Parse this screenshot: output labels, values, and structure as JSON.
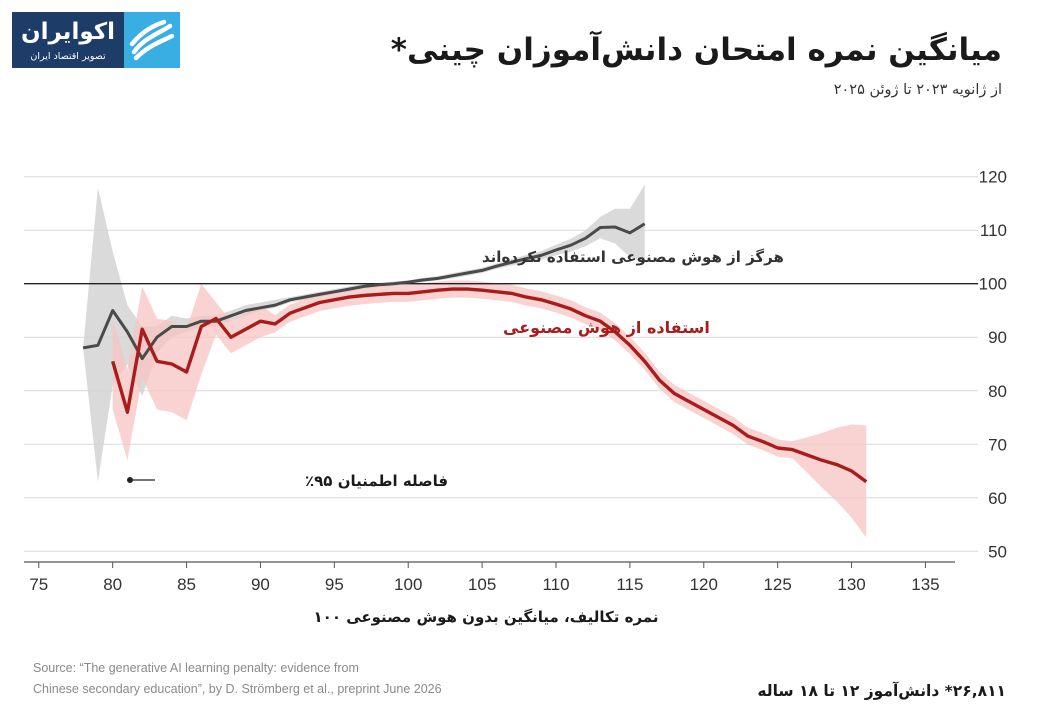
{
  "logo": {
    "name": "اکوایران",
    "tagline": "تصویر اقتصاد ایران"
  },
  "header": {
    "title": "میانگین نمره امتحان دانش‌آموزان چینی*",
    "subtitle": "از ژانویه ۲۰۲۳ تا ژوئن ۲۰۲۵"
  },
  "footer": {
    "source_line1": "Source: “The generative AI learning penalty: evidence from",
    "source_line2": "Chinese secondary education”, by D. Strömberg et al., preprint June 2026",
    "footnote": "۲۶,۸۱۱* دانش‌آموز ۱۲ تا ۱۸ ساله"
  },
  "colors": {
    "never_line": "#4a4a4a",
    "never_band": "#d4d4d4",
    "ai_line": "#a81c1c",
    "ai_band": "#f6c4c2",
    "brand_dark": "#1d3c67",
    "brand_light": "#38aee3"
  },
  "chart_data": {
    "type": "line",
    "xlabel": "نمره تکالیف، میانگین بدون هوش مصنوعی ۱۰۰",
    "xlim": [
      74,
      137
    ],
    "ylim": [
      48,
      122
    ],
    "x_ticks": [
      75,
      80,
      85,
      90,
      95,
      100,
      105,
      110,
      115,
      120,
      125,
      130,
      135
    ],
    "y_ticks": [
      50,
      60,
      70,
      80,
      90,
      100,
      110,
      120
    ],
    "reference_line": 100,
    "grid": "horizontal",
    "series": [
      {
        "name": "هرگز از هوش مصنوعی استفاده نکرده‌اند",
        "x": [
          78,
          79,
          80,
          81,
          82,
          83,
          84,
          85,
          86,
          87,
          88,
          89,
          90,
          91,
          92,
          93,
          94,
          95,
          96,
          97,
          98,
          99,
          100,
          101,
          102,
          103,
          104,
          105,
          106,
          107,
          108,
          109,
          110,
          111,
          112,
          113,
          114,
          115,
          116
        ],
        "y": [
          88,
          88.5,
          95,
          91,
          86,
          90,
          92,
          92,
          93,
          93,
          94,
          95,
          95.5,
          96,
          97,
          97.5,
          98,
          98.5,
          99,
          99.5,
          99.8,
          100,
          100.3,
          100.7,
          101,
          101.5,
          102,
          102.5,
          103.3,
          104,
          104.7,
          105.3,
          106.3,
          107.2,
          108.5,
          110.5,
          110.6,
          109.5,
          111.2
        ],
        "ci_lower": [
          88,
          63,
          81,
          85,
          79,
          87,
          90,
          91,
          92,
          92,
          93,
          94,
          95,
          95.5,
          96.5,
          97,
          97.5,
          98,
          98.5,
          99,
          99.4,
          99.6,
          100,
          100.3,
          100.6,
          101,
          101.5,
          102,
          102.8,
          103.4,
          104,
          104.5,
          105.3,
          106,
          107,
          108.5,
          107.5,
          105,
          104
        ],
        "ci_upper": [
          88,
          118,
          106,
          96,
          92,
          92,
          94,
          93.5,
          94,
          94,
          95,
          96,
          96.5,
          97,
          97.5,
          98,
          98.5,
          99,
          99.5,
          100,
          100.2,
          100.4,
          100.6,
          101.1,
          101.4,
          102,
          102.5,
          103,
          103.8,
          104.6,
          105.4,
          106.1,
          107.3,
          108.4,
          110,
          112.5,
          114,
          114,
          118.5
        ]
      },
      {
        "name": "استفاده از هوش مصنوعی",
        "x": [
          80,
          81,
          82,
          83,
          84,
          85,
          86,
          87,
          88,
          89,
          90,
          91,
          92,
          93,
          94,
          95,
          96,
          97,
          98,
          99,
          100,
          101,
          102,
          103,
          104,
          105,
          106,
          107,
          108,
          109,
          110,
          111,
          112,
          113,
          114,
          115,
          116,
          117,
          118,
          119,
          120,
          121,
          122,
          123,
          124,
          125,
          126,
          127,
          128,
          129,
          130,
          131
        ],
        "y": [
          85.5,
          76,
          91.5,
          85.5,
          85,
          83.5,
          92,
          93.5,
          90,
          91.5,
          93,
          92.5,
          94.5,
          95.5,
          96.5,
          97,
          97.5,
          97.8,
          98,
          98.2,
          98.2,
          98.5,
          98.8,
          99,
          99,
          98.8,
          98.5,
          98.2,
          97.5,
          97,
          96.2,
          95.3,
          94,
          93,
          91,
          88.5,
          85.5,
          82,
          79.5,
          78,
          76.5,
          75,
          73.5,
          71.5,
          70.5,
          69.3,
          69,
          68,
          67,
          66.2,
          65,
          63
        ]
      }
    ],
    "ci_label": "فاصله اطمنیان ۹۵٪"
  }
}
